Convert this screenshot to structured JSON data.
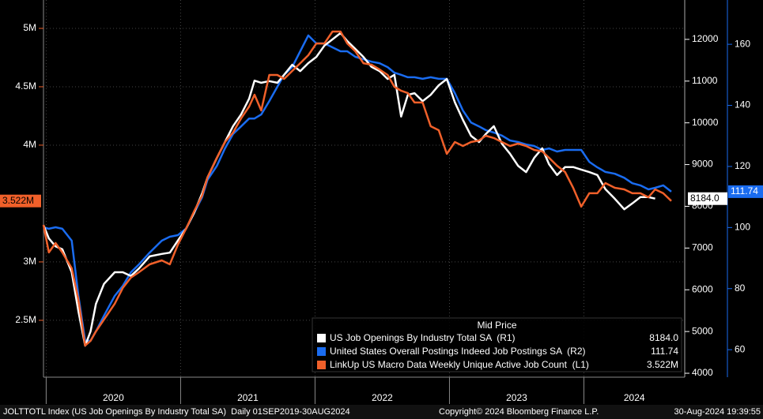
{
  "chart_data": {
    "type": "line",
    "x": [
      2019.98,
      2020.02,
      2020.07,
      2020.12,
      2020.19,
      2020.24,
      2020.29,
      2020.33,
      2020.37,
      2020.43,
      2020.51,
      2020.57,
      2020.63,
      2020.69,
      2020.77,
      2020.86,
      2020.92,
      2020.98,
      2021.04,
      2021.1,
      2021.16,
      2021.2,
      2021.27,
      2021.33,
      2021.39,
      2021.45,
      2021.51,
      2021.55,
      2021.6,
      2021.66,
      2021.72,
      2021.77,
      2021.83,
      2021.89,
      2021.95,
      2022.01,
      2022.07,
      2022.13,
      2022.19,
      2022.24,
      2022.3,
      2022.36,
      2022.42,
      2022.48,
      2022.54,
      2022.59,
      2022.64,
      2022.69,
      2022.74,
      2022.8,
      2022.86,
      2022.92,
      2022.98,
      2023.04,
      2023.1,
      2023.16,
      2023.22,
      2023.27,
      2023.33,
      2023.39,
      2023.45,
      2023.51,
      2023.57,
      2023.63,
      2023.69,
      2023.74,
      2023.8,
      2023.86,
      2023.92,
      2023.98,
      2024.04,
      2024.1,
      2024.16,
      2024.23,
      2024.3,
      2024.36,
      2024.42,
      2024.48,
      2024.53,
      2024.59,
      2024.65
    ],
    "xlim": [
      2019.98,
      2024.75
    ],
    "xticks": [
      2020,
      2021,
      2022,
      2023,
      2024
    ],
    "series": [
      {
        "name": "US Job Openings By Industry Total SA  (R1)",
        "color": "#ffffff",
        "axis": "y2",
        "last_value_label": "8184.0",
        "values": [
          7550,
          7230,
          7040,
          6970,
          6420,
          5480,
          4660,
          5000,
          5660,
          6140,
          6420,
          6420,
          6330,
          6510,
          6800,
          6860,
          6890,
          7180,
          7460,
          7840,
          8310,
          8690,
          9160,
          9540,
          9920,
          10200,
          10580,
          11010,
          10960,
          11000,
          10960,
          11150,
          11390,
          11240,
          11430,
          11580,
          11850,
          12000,
          12150,
          11960,
          11770,
          11580,
          11340,
          11240,
          11050,
          11150,
          10150,
          10670,
          10710,
          10520,
          10670,
          10900,
          11050,
          10490,
          10070,
          9690,
          9540,
          9730,
          9920,
          9500,
          9260,
          8970,
          8820,
          9160,
          9390,
          9010,
          8750,
          8940,
          8940,
          8880,
          8820,
          8750,
          8410,
          8180,
          7930,
          8070,
          8220,
          8220,
          8184,
          null,
          null
        ]
      },
      {
        "name": "United States Overall Postings Indeed Job Postings SA  (R2)",
        "color": "#1a6cf0",
        "axis": "y3",
        "last_value_label": "111.74",
        "values": [
          100.1,
          99.6,
          100.1,
          99.6,
          95.7,
          77.6,
          62.9,
          62.9,
          66.0,
          71.1,
          77.6,
          80.9,
          85.3,
          87.9,
          91.8,
          95.7,
          97.0,
          97.5,
          99.6,
          104.7,
          109.9,
          115.6,
          120.2,
          125.9,
          130.6,
          133.1,
          135.7,
          135.7,
          137.0,
          141.4,
          146.1,
          150.0,
          152.5,
          157.7,
          162.9,
          160.3,
          160.3,
          159.0,
          157.7,
          157.7,
          155.9,
          155.1,
          154.3,
          153.8,
          152.5,
          150.7,
          150.0,
          149.2,
          149.2,
          148.7,
          149.2,
          148.7,
          148.7,
          144.0,
          138.3,
          134.4,
          133.1,
          131.9,
          131.1,
          130.1,
          128.5,
          128.0,
          127.2,
          126.7,
          125.4,
          125.9,
          124.9,
          125.4,
          125.4,
          125.4,
          121.5,
          119.7,
          118.2,
          117.6,
          116.3,
          114.5,
          113.8,
          112.5,
          113.0,
          113.8,
          111.74
        ]
      },
      {
        "name": "LinkUp US Macro Data Weekly Unique Active Job Count  (L1)",
        "color": "#f0602a",
        "axis": "y",
        "last_value_label": "3.522M",
        "values": [
          3317000,
          3081000,
          3162000,
          3081000,
          2946000,
          2675000,
          2283000,
          2324000,
          2405000,
          2506000,
          2642000,
          2777000,
          2865000,
          2912000,
          2979000,
          3013000,
          2979000,
          3148000,
          3283000,
          3432000,
          3567000,
          3723000,
          3892000,
          4027000,
          4108000,
          4229000,
          4331000,
          4432000,
          4297000,
          4601000,
          4601000,
          4567000,
          4635000,
          4702000,
          4770000,
          4871000,
          4871000,
          4973000,
          4973000,
          4871000,
          4804000,
          4702000,
          4689000,
          4648000,
          4601000,
          4500000,
          4466000,
          4446000,
          4365000,
          4365000,
          4162000,
          4128000,
          3925000,
          4027000,
          3993000,
          4027000,
          4040000,
          4081000,
          4061000,
          4027000,
          3993000,
          4013000,
          3993000,
          3959000,
          3946000,
          3892000,
          3824000,
          3770000,
          3635000,
          3473000,
          3588000,
          3588000,
          3675000,
          3635000,
          3621000,
          3588000,
          3588000,
          3554000,
          3621000,
          3588000,
          3522000
        ]
      }
    ],
    "ylim": [
      2013000,
      5243000
    ],
    "yticks": [
      {
        "value": 2500000,
        "label": "2.5M"
      },
      {
        "value": 3000000,
        "label": "3M"
      },
      {
        "value": 4000000,
        "label": "4M"
      },
      {
        "value": 4500000,
        "label": "4.5M"
      },
      {
        "value": 5000000,
        "label": "5M"
      }
    ],
    "y2lim": [
      3906,
      12943
    ],
    "y2ticks": [
      4000,
      5000,
      6000,
      7000,
      8000,
      9000,
      10000,
      11000,
      12000
    ],
    "y3lim": [
      51,
      174.5
    ],
    "y3ticks": [
      60,
      80,
      100,
      120,
      140,
      160
    ],
    "grid": true,
    "legend_title": "Mid Price",
    "legend_position": "lower right"
  },
  "footer": {
    "left": "JOLTTOTL Index (US Job Openings By Industry Total SA)  Daily 01SEP2019-30AUG2024",
    "center": "Copyright© 2024 Bloomberg Finance L.P.",
    "right": "30-Aug-2024 19:39:55"
  }
}
